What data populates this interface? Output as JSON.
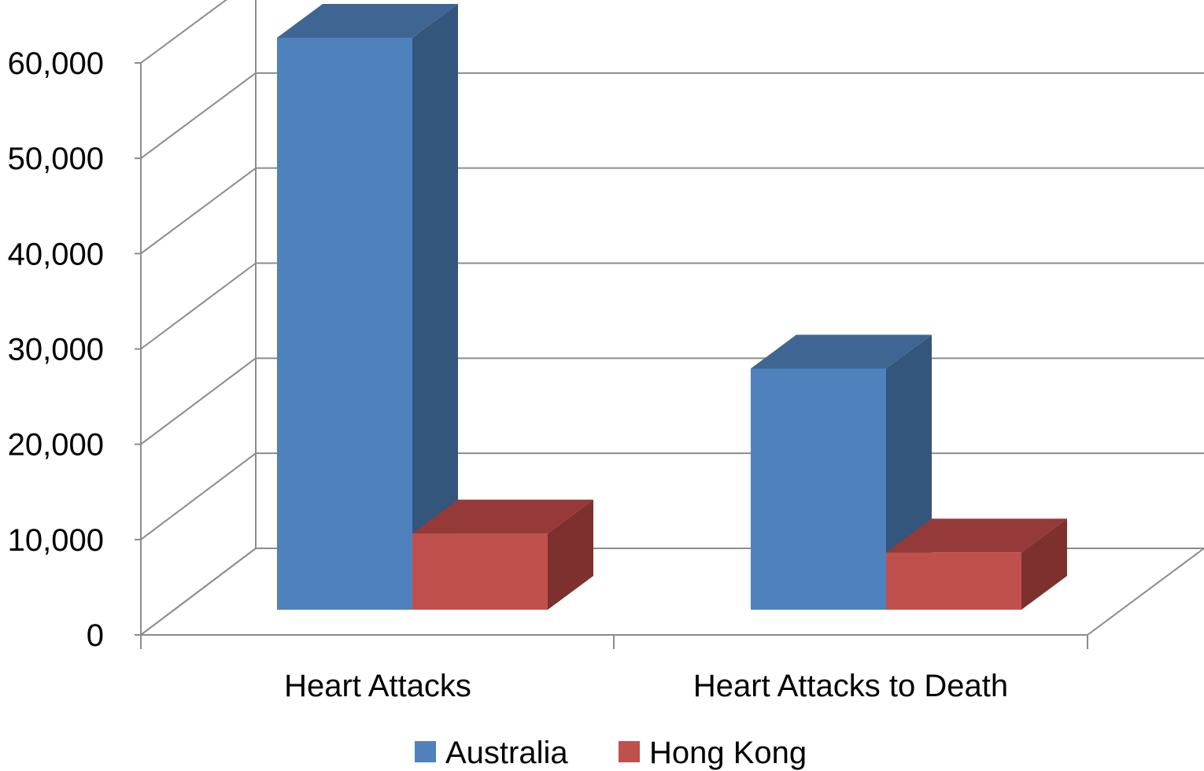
{
  "chart_data": {
    "type": "bar",
    "style": "3d-clustered-column",
    "categories": [
      "Heart Attacks",
      "Heart Attacks to Death"
    ],
    "series": [
      {
        "name": "Australia",
        "values": [
          60000,
          25300
        ],
        "color": "#4F81BD",
        "side_color": "#34557C",
        "top_color": "#3F6593"
      },
      {
        "name": "Hong Kong",
        "values": [
          8000,
          6000
        ],
        "color": "#C0504D",
        "side_color": "#7D302D",
        "top_color": "#953A38"
      }
    ],
    "ylim": [
      0,
      60000
    ],
    "yticks": [
      0,
      10000,
      20000,
      30000,
      40000,
      50000,
      60000
    ],
    "ytick_labels": [
      "0",
      "10,000",
      "20,000",
      "30,000",
      "40,000",
      "50,000",
      "60,000"
    ],
    "grid": true,
    "legend_position": "bottom"
  }
}
